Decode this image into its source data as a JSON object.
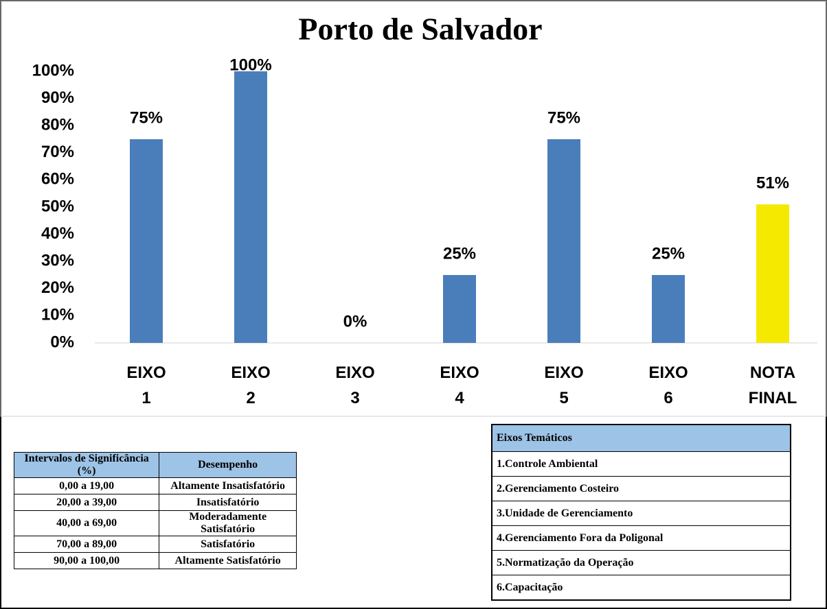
{
  "chart_data": {
    "type": "bar",
    "title": "Porto de Salvador",
    "categories": [
      "EIXO 1",
      "EIXO 2",
      "EIXO 3",
      "EIXO 4",
      "EIXO 5",
      "EIXO 6",
      "NOTA FINAL"
    ],
    "values": [
      75,
      100,
      0,
      25,
      75,
      25,
      51
    ],
    "value_labels": [
      "75%",
      "100%",
      "0%",
      "25%",
      "75%",
      "25%",
      "51%"
    ],
    "colors": [
      "#4a7ebb",
      "#4a7ebb",
      "#4a7ebb",
      "#4a7ebb",
      "#4a7ebb",
      "#4a7ebb",
      "#f5e900"
    ],
    "ylim": [
      0,
      100
    ],
    "yticks": [
      {
        "value": 0,
        "label": "0%"
      },
      {
        "value": 10,
        "label": "10%"
      },
      {
        "value": 20,
        "label": "20%"
      },
      {
        "value": 30,
        "label": "30%"
      },
      {
        "value": 40,
        "label": "40%"
      },
      {
        "value": 50,
        "label": "50%"
      },
      {
        "value": 60,
        "label": "60%"
      },
      {
        "value": 70,
        "label": "70%"
      },
      {
        "value": 80,
        "label": "80%"
      },
      {
        "value": 90,
        "label": "90%"
      },
      {
        "value": 100,
        "label": "100%"
      }
    ],
    "grid": false
  },
  "significance_table": {
    "header": [
      "Intervalos de Significância (%)",
      "Desempenho"
    ],
    "rows": [
      [
        "0,00 a 19,00",
        "Altamente Insatisfatório"
      ],
      [
        "20,00 a 39,00",
        "Insatisfatório"
      ],
      [
        "40,00 a 69,00",
        "Moderadamente Satisfatório"
      ],
      [
        "70,00 a 89,00",
        "Satisfatório"
      ],
      [
        "90,00 a 100,00",
        "Altamente Satisfatório"
      ]
    ]
  },
  "axes_table": {
    "header": "Eixos Temáticos",
    "rows": [
      "1.Controle Ambiental",
      "2.Gerenciamento Costeiro",
      "3.Unidade de Gerenciamento",
      "4.Gerenciamento Fora da Poligonal",
      "5.Normatização da Operação",
      "6.Capacitação"
    ]
  }
}
